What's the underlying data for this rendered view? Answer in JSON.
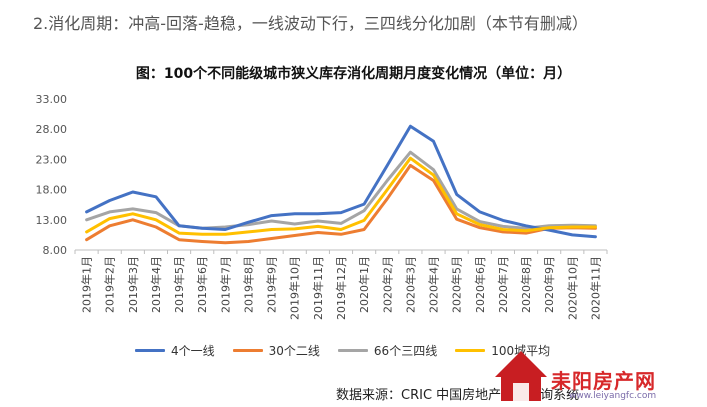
{
  "heading": "2.消化周期：冲高-回落-趋稳，一线波动下行，三四线分化加剧（本节有删减）",
  "source": "数据来源：CRIC 中国房地产决策咨询系统",
  "watermark": {
    "text": "耒阳房产网",
    "url": "www.leiyangfc.com",
    "logo": "LYFC"
  },
  "chart_data": {
    "type": "line",
    "title": "图：100个不同能级城市狭义库存消化周期月度变化情况（单位：月）",
    "xlabel": "",
    "ylabel": "",
    "ylim": [
      8,
      33
    ],
    "yticks": [
      "33.00",
      "28.00",
      "23.00",
      "18.00",
      "13.00",
      "8.00"
    ],
    "grid": false,
    "legend_position": "bottom",
    "categories": [
      "2019年1月",
      "2019年2月",
      "2019年3月",
      "2019年4月",
      "2019年5月",
      "2019年6月",
      "2019年7月",
      "2019年8月",
      "2019年9月",
      "2019年10月",
      "2019年11月",
      "2019年12月",
      "2020年1月",
      "2020年2月",
      "2020年3月",
      "2020年4月",
      "2020年5月",
      "2020年6月",
      "2020年7月",
      "2020年8月",
      "2020年9月",
      "2020年10月",
      "2020年11月"
    ],
    "series": [
      {
        "name": "4个一线",
        "color": "#4472c4",
        "values": [
          14.3,
          16.2,
          17.6,
          16.8,
          12.0,
          11.6,
          11.4,
          12.6,
          13.7,
          14.0,
          14.0,
          14.2,
          15.6,
          22.0,
          28.5,
          26.0,
          17.2,
          14.3,
          12.9,
          12.0,
          11.3,
          10.5,
          10.2
        ]
      },
      {
        "name": "30个二线",
        "color": "#ed7d31",
        "values": [
          9.7,
          12.0,
          13.0,
          11.8,
          9.7,
          9.4,
          9.2,
          9.4,
          9.9,
          10.4,
          10.9,
          10.6,
          11.4,
          16.5,
          22.0,
          19.5,
          13.1,
          11.7,
          11.0,
          10.8,
          11.6,
          11.7,
          11.6
        ]
      },
      {
        "name": "66个三四线",
        "color": "#a5a5a5",
        "values": [
          13.0,
          14.3,
          14.8,
          14.2,
          12.0,
          11.6,
          11.8,
          12.2,
          12.8,
          12.3,
          12.8,
          12.4,
          14.5,
          19.5,
          24.2,
          21.3,
          14.8,
          12.7,
          11.9,
          11.6,
          12.0,
          12.1,
          12.0
        ]
      },
      {
        "name": "100城平均",
        "color": "#ffc000",
        "values": [
          11.0,
          13.2,
          14.0,
          13.0,
          10.8,
          10.6,
          10.6,
          11.0,
          11.4,
          11.5,
          11.9,
          11.4,
          12.9,
          18.0,
          23.2,
          20.4,
          14.0,
          12.2,
          11.4,
          11.2,
          11.7,
          11.8,
          11.8
        ]
      }
    ]
  }
}
